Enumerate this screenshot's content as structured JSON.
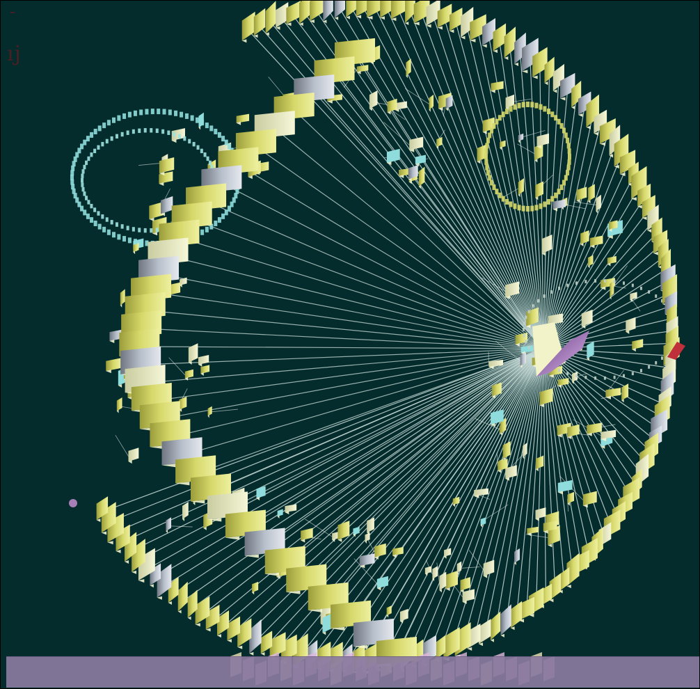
{
  "viewer": {
    "corner_label": "ıj",
    "colors": {
      "background": "#042c2c",
      "edge": "#c8dcd8",
      "node_yellow": "#d6d86a",
      "node_cream": "#eef0c4",
      "node_silver": "#b8c0cc",
      "node_cyan": "#7cd4d4",
      "node_violet": "#a67fb8",
      "node_red": "#c0303a",
      "status_bar": "#8b7ba0"
    },
    "icons": {
      "root_node": "folder-icon",
      "node": "folder-icon"
    }
  }
}
